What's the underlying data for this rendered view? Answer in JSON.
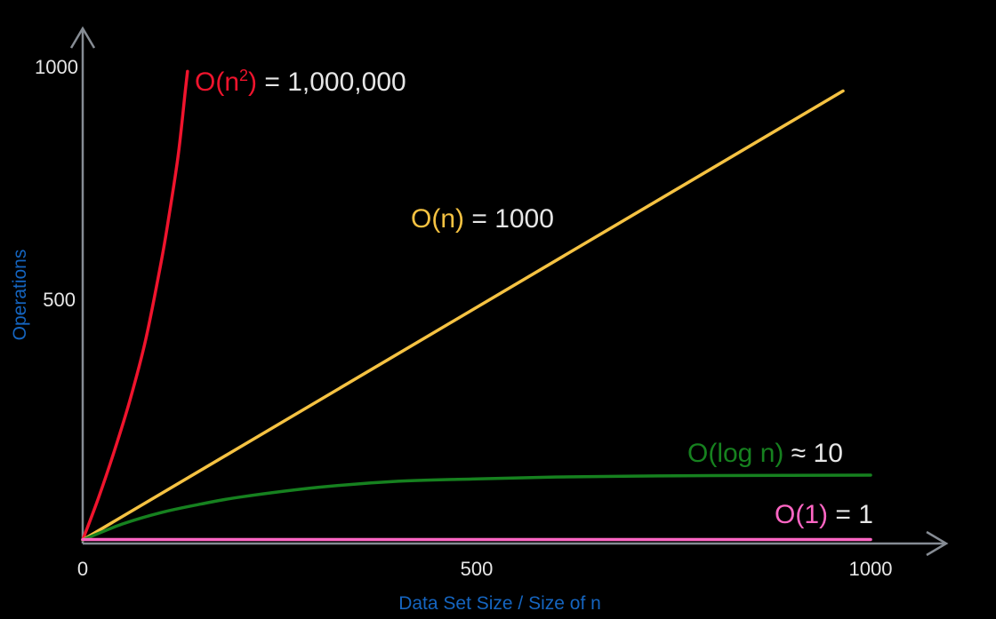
{
  "chart_data": {
    "type": "line",
    "xlabel": "Data Set Size / Size of n",
    "ylabel": "Operations",
    "xlim": [
      0,
      1000
    ],
    "ylim": [
      0,
      1000
    ],
    "x_ticks": [
      "0",
      "500",
      "1000"
    ],
    "y_ticks": [
      "500",
      "1000"
    ],
    "grid": false,
    "colors": {
      "axis": "#868c94",
      "tick_text": "#e6e6e6",
      "axis_label": "#1565c0",
      "annotation_value": "#e6e6e6"
    },
    "series": [
      {
        "label_main": "O(n",
        "label_sup": "2",
        "label_close": ")",
        "value_text": " = 1,000,000",
        "color": "#f0142d",
        "x": [
          0,
          20,
          40,
          60,
          80,
          100,
          110,
          120,
          125,
          130,
          133
        ],
        "y": [
          0,
          90,
          190,
          300,
          430,
          600,
          700,
          810,
          880,
          960,
          1005
        ]
      },
      {
        "label_main": "O(n)",
        "value_text": " = 1000",
        "color": "#f5c242",
        "x": [
          0,
          965
        ],
        "y": [
          0,
          963
        ]
      },
      {
        "label_main": "O(log n)",
        "value_text": " ≈ 10",
        "color": "#16811f",
        "x": [
          0,
          50,
          100,
          150,
          200,
          300,
          400,
          500,
          600,
          700,
          800,
          1000
        ],
        "y": [
          0,
          34,
          59,
          77,
          92,
          113,
          126,
          131,
          135,
          137,
          138,
          139
        ]
      },
      {
        "label_main": "O(1)",
        "value_text": " = 1",
        "color": "#ff66c4",
        "x": [
          0,
          1000
        ],
        "y": [
          1,
          1
        ]
      }
    ]
  }
}
